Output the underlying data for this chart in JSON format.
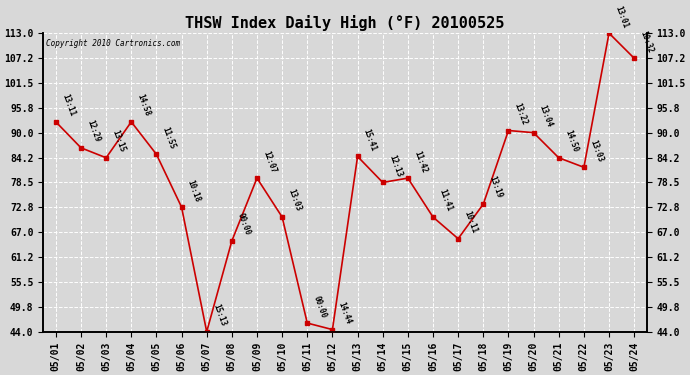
{
  "title": "THSW Index Daily High (°F) 20100525",
  "copyright": "Copyright 2010 Cartronics.com",
  "x_labels": [
    "05/01",
    "05/02",
    "05/03",
    "05/04",
    "05/05",
    "05/06",
    "05/07",
    "05/08",
    "05/09",
    "05/10",
    "05/11",
    "05/12",
    "05/13",
    "05/14",
    "05/15",
    "05/16",
    "05/17",
    "05/18",
    "05/19",
    "05/20",
    "05/21",
    "05/22",
    "05/23",
    "05/24"
  ],
  "y_values": [
    92.5,
    86.5,
    84.2,
    92.5,
    85.0,
    72.8,
    44.0,
    65.0,
    79.5,
    70.5,
    46.0,
    44.5,
    84.5,
    78.5,
    79.5,
    70.5,
    65.5,
    73.5,
    90.5,
    90.0,
    84.2,
    82.0,
    113.0,
    107.2
  ],
  "time_labels": [
    "13:11",
    "12:29",
    "13:15",
    "14:58",
    "11:55",
    "10:18",
    "15:13",
    "00:00",
    "12:07",
    "13:03",
    "00:00",
    "14:44",
    "15:41",
    "12:13",
    "11:42",
    "11:41",
    "10:11",
    "13:19",
    "13:22",
    "13:04",
    "14:50",
    "13:03",
    "13:01",
    "10:32"
  ],
  "ylim": [
    44.0,
    113.0
  ],
  "yticks": [
    44.0,
    49.8,
    55.5,
    61.2,
    67.0,
    72.8,
    78.5,
    84.2,
    90.0,
    95.8,
    101.5,
    107.2,
    113.0
  ],
  "line_color": "#cc0000",
  "marker_color": "#cc0000",
  "bg_color": "#d8d8d8",
  "grid_color": "#ffffff",
  "title_fontsize": 11,
  "tick_fontsize": 7,
  "annotation_fontsize": 5.5,
  "annotation_rotation": -70
}
